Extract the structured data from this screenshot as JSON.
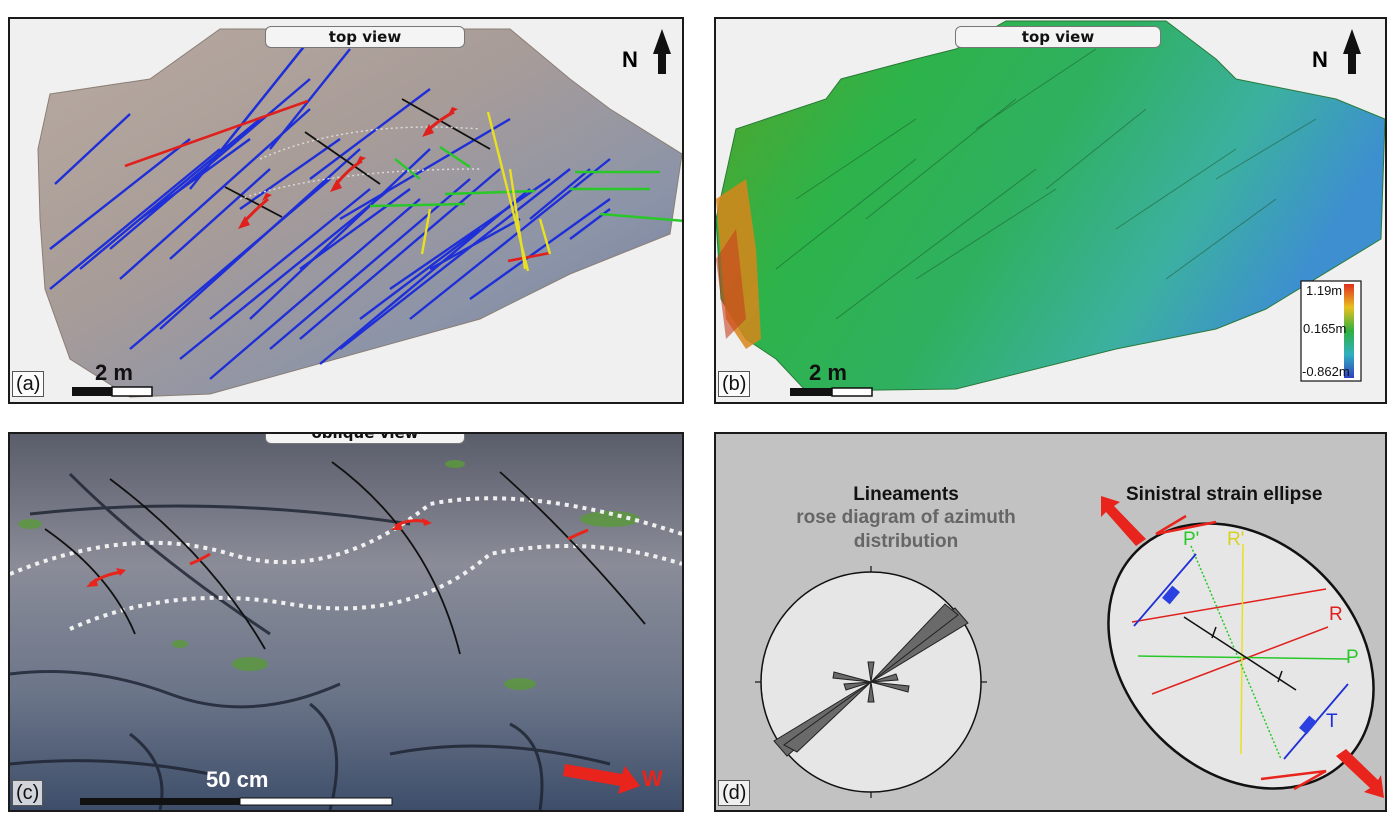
{
  "panels": {
    "a": {
      "label": "(a)",
      "view": "top view",
      "scale": "2 m",
      "north": "N"
    },
    "b": {
      "label": "(b)",
      "view": "top view",
      "scale": "2 m",
      "north": "N",
      "colorbar": {
        "max": "1.19m",
        "mid": "0.165m",
        "min": "-0.862m"
      }
    },
    "c": {
      "label": "(c)",
      "view": "oblique view",
      "scale": "50 cm",
      "direction": "W"
    },
    "d": {
      "label": "(d)",
      "rose": {
        "title": "Lineaments",
        "subtitle": "rose diagram of azimuth distribution"
      },
      "ellipse": {
        "title": "Sinistral strain ellipse",
        "labels": {
          "p_prime": "P'",
          "r_prime": "R'",
          "r": "R",
          "p": "P",
          "t": "T"
        }
      }
    }
  },
  "colors": {
    "fault_blue": "#1f2fd8",
    "fault_red": "#e0201c",
    "fault_green": "#28c828",
    "fault_yellow": "#e8e020",
    "arrow_red": "#e8241c"
  }
}
